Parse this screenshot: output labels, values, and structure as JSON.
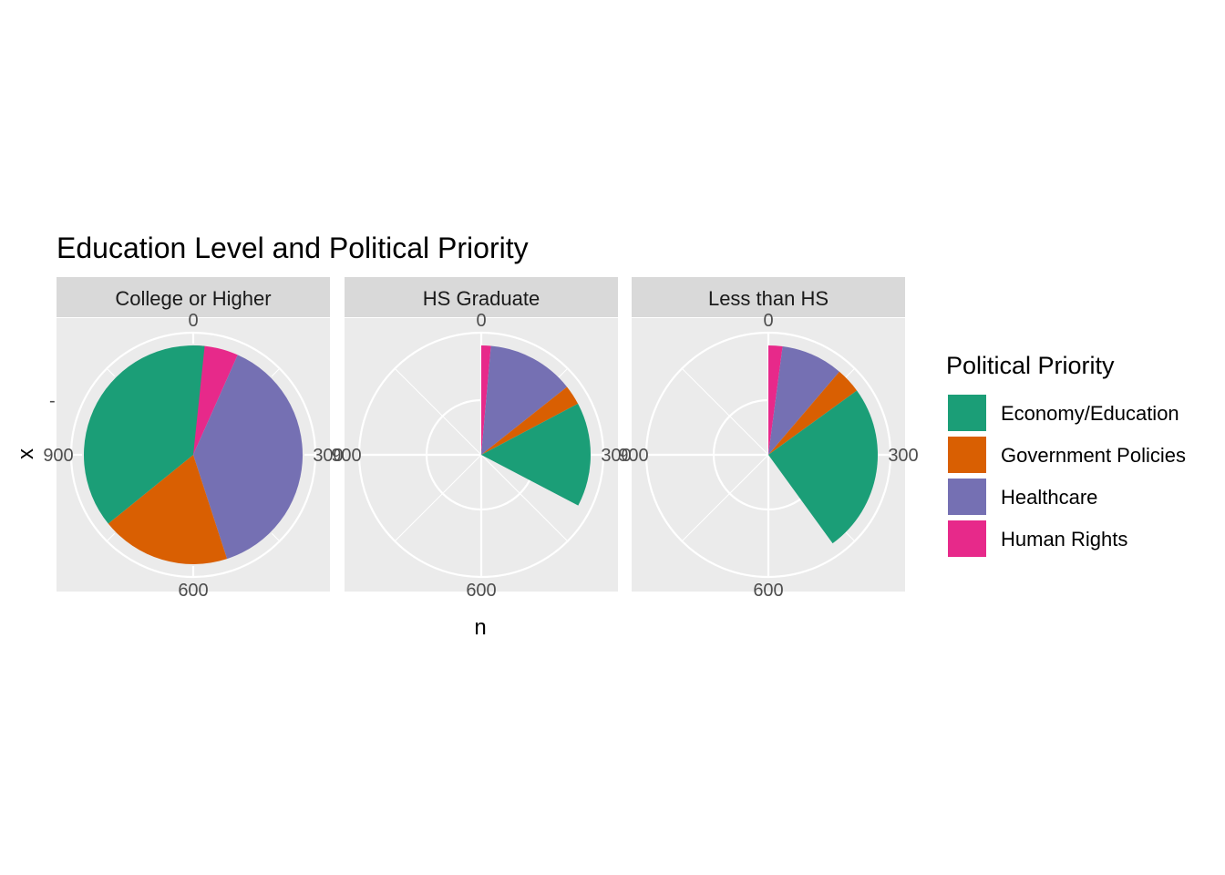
{
  "chart_data": {
    "type": "pie",
    "title": "Education Level and Political Priority",
    "xlabel": "n",
    "ylabel": "x",
    "y_tick": "-",
    "theta_ticks": [
      0,
      300,
      600,
      900
    ],
    "theta_range": [
      0,
      1200
    ],
    "legend": {
      "title": "Political Priority",
      "position": "right",
      "entries": [
        {
          "label": "Economy/Education",
          "color": "#1B9E77"
        },
        {
          "label": "Government Policies",
          "color": "#D95F02"
        },
        {
          "label": "Healthcare",
          "color": "#7570B3"
        },
        {
          "label": "Human Rights",
          "color": "#E7298A"
        }
      ]
    },
    "categories": [
      "Economy/Education",
      "Government Policies",
      "Healthcare",
      "Human Rights"
    ],
    "panels": [
      {
        "name": "College or Higher",
        "values": [
          450,
          230,
          460,
          80
        ]
      },
      {
        "name": "HS Graduate",
        "values": [
          185,
          35,
          155,
          17
        ]
      },
      {
        "name": "Less than HS",
        "values": [
          300,
          45,
          110,
          25
        ]
      }
    ]
  }
}
